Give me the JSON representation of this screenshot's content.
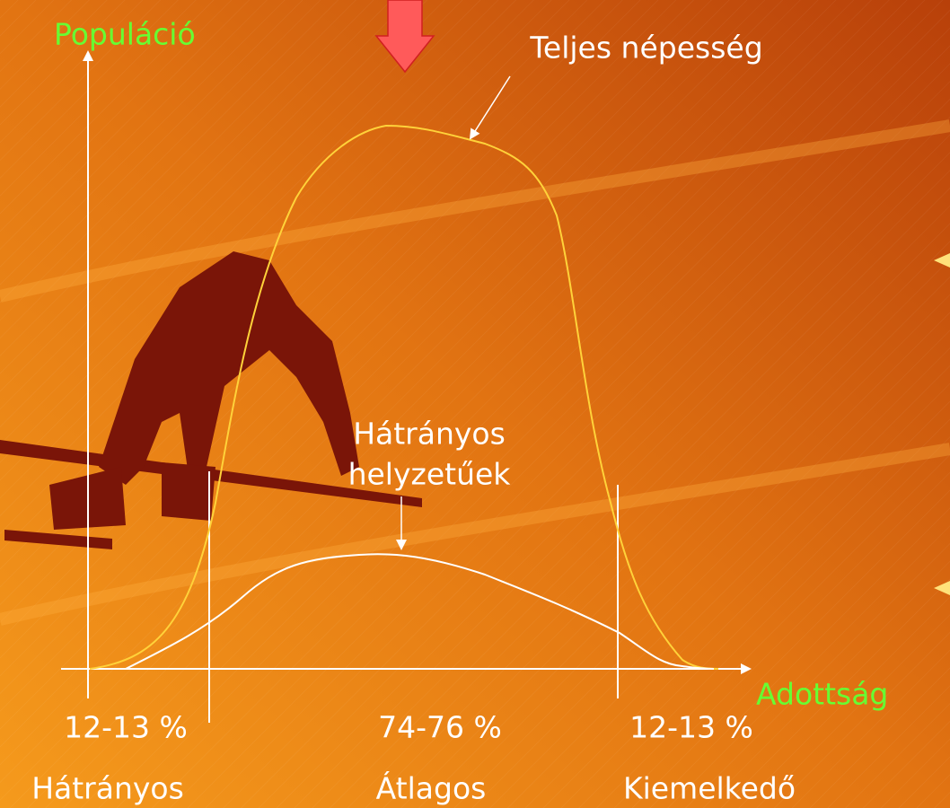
{
  "axes": {
    "y_label": "Populáció",
    "x_label": "Adottság"
  },
  "curves": [
    {
      "label": "Teljes népesség"
    },
    {
      "label_lines": [
        "Hátrányos",
        "helyzetűek"
      ]
    }
  ],
  "segments": [
    {
      "share": "12-13 %",
      "name": "Hátrányos"
    },
    {
      "share": "74-76 %",
      "name": "Átlagos"
    },
    {
      "share": "12-13 %",
      "name": "Kiemelkedő"
    }
  ]
}
